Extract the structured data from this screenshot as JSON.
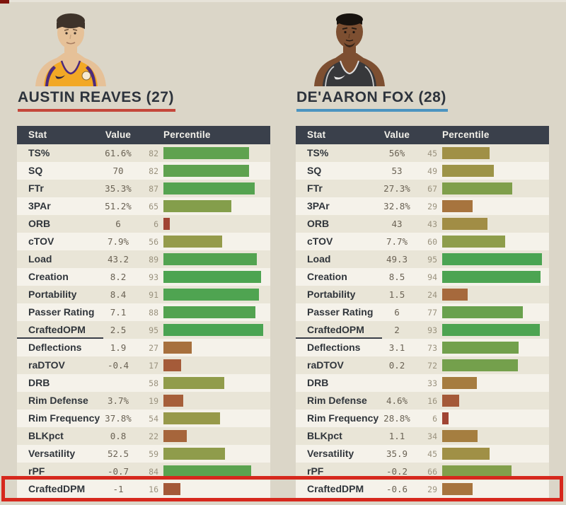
{
  "page": {
    "background": "#dbd6c8",
    "top_strip_color": "#e7e3d9",
    "corner_artifact_color": "#7f150d"
  },
  "annotation": {
    "highlight_color": "#d6281d",
    "highlighted_stat": "CraftedDPM"
  },
  "percentile_colors": {
    "stops": [
      [
        0,
        "#9e382f"
      ],
      [
        10,
        "#a14c36"
      ],
      [
        20,
        "#a6613a"
      ],
      [
        30,
        "#a7763e"
      ],
      [
        40,
        "#a38a43"
      ],
      [
        48,
        "#9e9348"
      ],
      [
        56,
        "#959b4b"
      ],
      [
        64,
        "#869e4b"
      ],
      [
        72,
        "#74a04c"
      ],
      [
        80,
        "#63a24e"
      ],
      [
        88,
        "#53a350"
      ],
      [
        100,
        "#44a553"
      ]
    ]
  },
  "chart_data": {
    "type": "table",
    "columns": [
      "Stat",
      "Value",
      "Percentile"
    ],
    "percentile_axis": [
      0,
      100
    ],
    "divider_after_stat": "CraftedOPM",
    "highlighted_stat": "CraftedDPM",
    "tables": [
      {
        "title": "AUSTIN REAVES (27)",
        "accent": "#c5473b",
        "portrait": {
          "skin": "#e6c198",
          "hair": "#3e332a",
          "jersey": "#f2a825",
          "trim": "#4d2a7d"
        },
        "rows": [
          {
            "stat": "TS%",
            "value": "61.6%",
            "pct": 82
          },
          {
            "stat": "SQ",
            "value": "70",
            "pct": 82
          },
          {
            "stat": "FTr",
            "value": "35.3%",
            "pct": 87
          },
          {
            "stat": "3PAr",
            "value": "51.2%",
            "pct": 65
          },
          {
            "stat": "ORB",
            "value": "6",
            "pct": 6
          },
          {
            "stat": "cTOV",
            "value": "7.9%",
            "pct": 56
          },
          {
            "stat": "Load",
            "value": "43.2",
            "pct": 89
          },
          {
            "stat": "Creation",
            "value": "8.2",
            "pct": 93
          },
          {
            "stat": "Portability",
            "value": "8.4",
            "pct": 91
          },
          {
            "stat": "Passer Rating",
            "value": "7.1",
            "pct": 88
          },
          {
            "stat": "CraftedOPM",
            "value": "2.5",
            "pct": 95
          },
          {
            "stat": "Deflections",
            "value": "1.9",
            "pct": 27
          },
          {
            "stat": "raDTOV",
            "value": "-0.4",
            "pct": 17
          },
          {
            "stat": "DRB",
            "value": "",
            "pct": 58
          },
          {
            "stat": "Rim Defense",
            "value": "3.7%",
            "pct": 19
          },
          {
            "stat": "Rim Frequency",
            "value": "37.8%",
            "pct": 54
          },
          {
            "stat": "BLKpct",
            "value": "0.8",
            "pct": 22
          },
          {
            "stat": "Versatility",
            "value": "52.5",
            "pct": 59
          },
          {
            "stat": "rPF",
            "value": "-0.7",
            "pct": 84
          },
          {
            "stat": "CraftedDPM",
            "value": "-1",
            "pct": 16
          }
        ]
      },
      {
        "title": "DE'AARON FOX (28)",
        "accent": "#4c94c0",
        "portrait": {
          "skin": "#7d4f31",
          "hair": "#17120e",
          "jersey": "#37383b",
          "trim": "#dddddd"
        },
        "rows": [
          {
            "stat": "TS%",
            "value": "56%",
            "pct": 45
          },
          {
            "stat": "SQ",
            "value": "53",
            "pct": 49
          },
          {
            "stat": "FTr",
            "value": "27.3%",
            "pct": 67
          },
          {
            "stat": "3PAr",
            "value": "32.8%",
            "pct": 29
          },
          {
            "stat": "ORB",
            "value": "43",
            "pct": 43
          },
          {
            "stat": "cTOV",
            "value": "7.7%",
            "pct": 60
          },
          {
            "stat": "Load",
            "value": "49.3",
            "pct": 95
          },
          {
            "stat": "Creation",
            "value": "8.5",
            "pct": 94
          },
          {
            "stat": "Portability",
            "value": "1.5",
            "pct": 24
          },
          {
            "stat": "Passer Rating",
            "value": "6",
            "pct": 77
          },
          {
            "stat": "CraftedOPM",
            "value": "2",
            "pct": 93
          },
          {
            "stat": "Deflections",
            "value": "3.1",
            "pct": 73
          },
          {
            "stat": "raDTOV",
            "value": "0.2",
            "pct": 72
          },
          {
            "stat": "DRB",
            "value": "",
            "pct": 33
          },
          {
            "stat": "Rim Defense",
            "value": "4.6%",
            "pct": 16
          },
          {
            "stat": "Rim Frequency",
            "value": "28.8%",
            "pct": 6
          },
          {
            "stat": "BLKpct",
            "value": "1.1",
            "pct": 34
          },
          {
            "stat": "Versatility",
            "value": "35.9",
            "pct": 45
          },
          {
            "stat": "rPF",
            "value": "-0.2",
            "pct": 66
          },
          {
            "stat": "CraftedDPM",
            "value": "-0.6",
            "pct": 29
          }
        ]
      }
    ]
  }
}
